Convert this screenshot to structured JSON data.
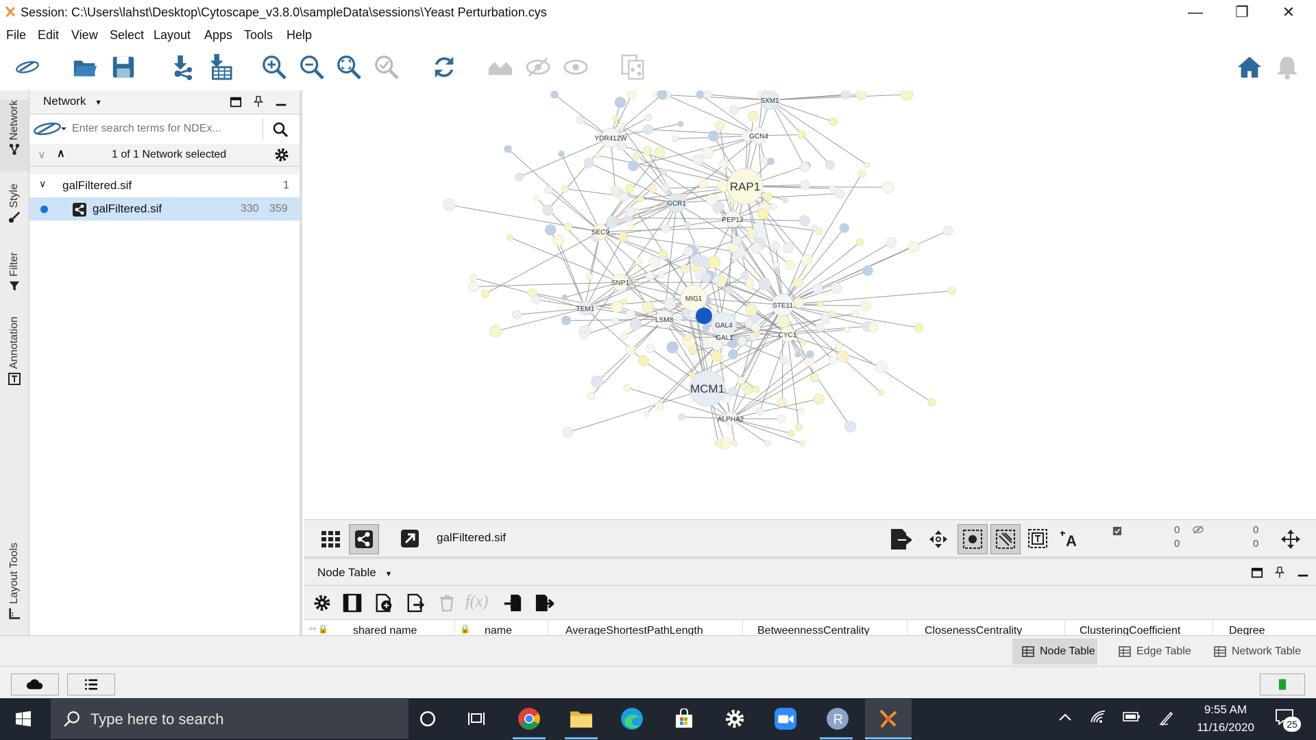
{
  "window": {
    "title": "Session: C:\\Users\\lahst\\Desktop\\Cytoscape_v3.8.0\\sampleData\\sessions\\Yeast Perturbation.cys"
  },
  "menu": [
    "File",
    "Edit",
    "View",
    "Select",
    "Layout",
    "Apps",
    "Tools",
    "Help"
  ],
  "toolbar": {
    "search_placeholder": "Enter search term..."
  },
  "sidebar_tabs": [
    "Network",
    "Style",
    "Filter",
    "Annotation",
    "Layout Tools"
  ],
  "network_panel": {
    "title": "Network",
    "ndex_placeholder": "Enter search terms for NDEx...",
    "selection_status": "1 of 1 Network selected",
    "collection": {
      "name": "galFiltered.sif",
      "count": "1"
    },
    "network": {
      "name": "galFiltered.sif",
      "nodes": "330",
      "edges": "359"
    }
  },
  "graph": {
    "labels": {
      "rap1": "RAP1",
      "mcm1": "MCM1",
      "mig1": "MIG1",
      "gal4": "GAL4",
      "ste11": "STE11",
      "gcr1": "GCR1",
      "lsm8": "LSM8",
      "sxm1": "SXM1",
      "gcn4": "GCN4",
      "ydr": "YDR412W",
      "pep12": "PEP12",
      "cyc1": "CYC1",
      "gal1": "GAL1",
      "snp1": "SNP1",
      "sec9": "SEC9",
      "alpha2": "ALPHA2",
      "tem1": "TEM1"
    }
  },
  "network_view": {
    "name": "galFiltered.sif",
    "sel_nodes": "0",
    "sel_edges": "0",
    "hidden_nodes": "0",
    "hidden_edges": "0"
  },
  "table_panel": {
    "title": "Node Table",
    "columns": [
      "shared name",
      "name",
      "AverageShortestPathLength",
      "BetweennessCentrality",
      "ClosenessCentrality",
      "ClusteringCoefficient",
      "Degree"
    ]
  },
  "bottom_tabs": [
    "Node Table",
    "Edge Table",
    "Network Table"
  ],
  "taskbar": {
    "search_placeholder": "Type here to search",
    "time": "9:55 AM",
    "date": "11/16/2020",
    "notifications": "25"
  }
}
